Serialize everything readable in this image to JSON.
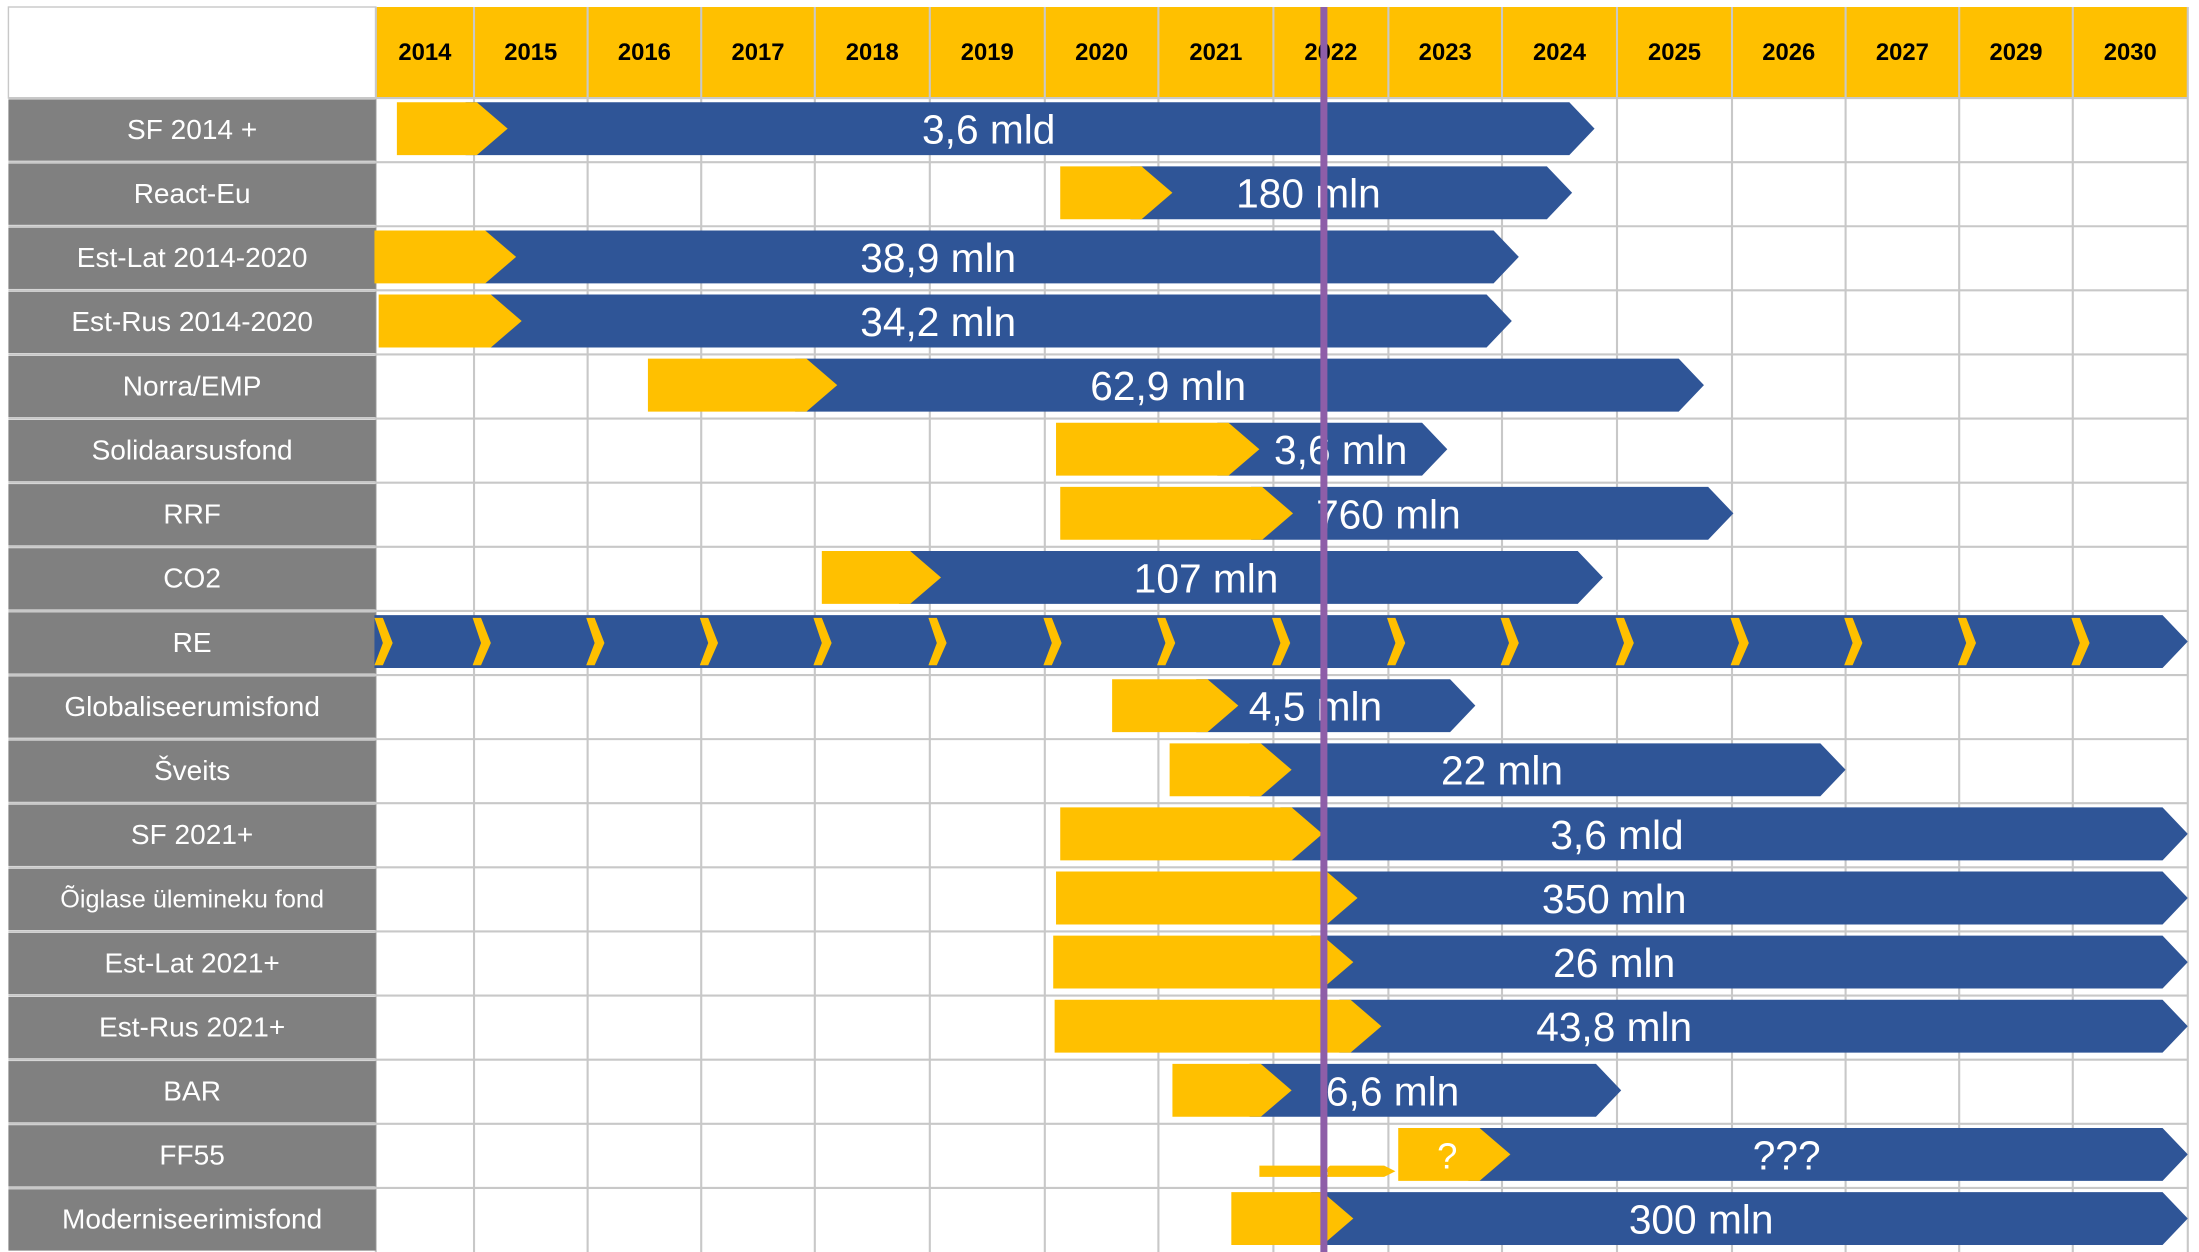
{
  "header": {
    "years": [
      "2014",
      "2015",
      "2016",
      "2017",
      "2018",
      "2019",
      "2020",
      "2021",
      "2022",
      "2023",
      "2024",
      "2025",
      "2026",
      "2027",
      "2029",
      "2030"
    ]
  },
  "rows": [
    {
      "label": "SF 2014 +",
      "amount": "3,6 mld"
    },
    {
      "label": "React-Eu",
      "amount": "180 mln"
    },
    {
      "label": "Est-Lat 2014-2020",
      "amount": "38,9 mln"
    },
    {
      "label": "Est-Rus 2014-2020",
      "amount": "34,2 mln"
    },
    {
      "label": "Norra/EMP",
      "amount": "62,9 mln"
    },
    {
      "label": "Solidaarsusfond",
      "amount": "3,6 mln"
    },
    {
      "label": "RRF",
      "amount": "760 mln"
    },
    {
      "label": "CO2",
      "amount": "107 mln"
    },
    {
      "label": "RE"
    },
    {
      "label": "Globaliseerumisfond",
      "amount": "4,5 mln"
    },
    {
      "label": "Šveits",
      "amount": "22 mln"
    },
    {
      "label": "SF 2021+",
      "amount": "3,6 mld"
    },
    {
      "label": "Õiglase ülemineku fond",
      "amount": "350 mln"
    },
    {
      "label": "Est-Lat 2021+",
      "amount": "26 mln"
    },
    {
      "label": "Est-Rus 2021+",
      "amount": "43,8 mln"
    },
    {
      "label": "BAR",
      "amount": "6,6 mln"
    },
    {
      "label": "FF55",
      "amount": "???",
      "notes": [
        "?",
        "?"
      ]
    },
    {
      "label": "Moderniseerimisfond",
      "amount": "300 mln"
    }
  ]
}
